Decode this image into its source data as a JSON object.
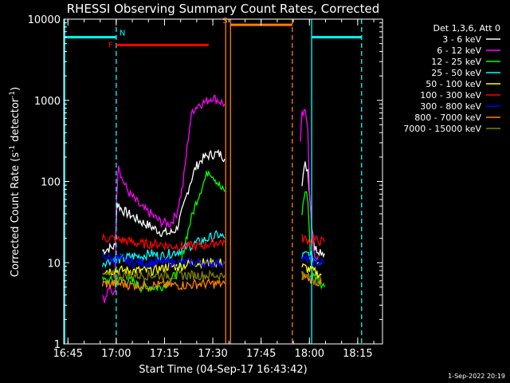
{
  "chart_data": {
    "type": "line",
    "title": "RHESSI Observing Summary Count Rates, Corrected",
    "xlabel": "Start Time (04-Sep-17 16:43:42)",
    "ylabel_main": "Corrected Count Rate (s",
    "ylabel_sup1": "-1",
    "ylabel_mid": " detector",
    "ylabel_sup2": "-1",
    "ylabel_end": ")",
    "y_scale": "log",
    "ylim": [
      1,
      10000
    ],
    "xlim_minutes": [
      0,
      99
    ],
    "x_ticks": [
      {
        "m": 1.3,
        "label": "16:45"
      },
      {
        "m": 16.3,
        "label": "17:00"
      },
      {
        "m": 31.3,
        "label": "17:15"
      },
      {
        "m": 46.3,
        "label": "17:30"
      },
      {
        "m": 61.3,
        "label": "17:45"
      },
      {
        "m": 76.3,
        "label": "18:00"
      },
      {
        "m": 91.3,
        "label": "18:15"
      }
    ],
    "y_ticks": [
      {
        "v": 1,
        "label": "1"
      },
      {
        "v": 10,
        "label": "10"
      },
      {
        "v": 100,
        "label": "100"
      },
      {
        "v": 1000,
        "label": "1000"
      },
      {
        "v": 10000,
        "label": "10000"
      }
    ],
    "legend_title": "Det 1,3,6, Att 0",
    "series": [
      {
        "name": "3 - 6 keV",
        "color": "#ffffff",
        "segments": [
          [
            [
              12,
              14
            ],
            [
              14,
              15
            ],
            [
              16,
              16
            ],
            [
              16.5,
              55
            ],
            [
              18,
              45
            ],
            [
              21,
              38
            ],
            [
              24,
              32
            ],
            [
              27,
              28
            ],
            [
              30,
              24
            ],
            [
              33,
              23
            ],
            [
              35,
              26
            ],
            [
              37,
              45
            ],
            [
              39,
              90
            ],
            [
              41,
              150
            ],
            [
              43,
              190
            ],
            [
              45,
              210
            ],
            [
              47,
              220
            ],
            [
              49,
              215
            ],
            [
              50,
              190
            ]
          ],
          [
            [
              74,
              100
            ],
            [
              75,
              160
            ],
            [
              75.8,
              140
            ],
            [
              76.5,
              60
            ],
            [
              77,
              30
            ],
            [
              78,
              15
            ],
            [
              80,
              14
            ],
            [
              81,
              13
            ]
          ]
        ]
      },
      {
        "name": "6 - 12 keV",
        "color": "#ff00ff",
        "segments": [
          [
            [
              12,
              4
            ],
            [
              13,
              3.5
            ],
            [
              14,
              5
            ],
            [
              15,
              4
            ],
            [
              16,
              5
            ],
            [
              16.3,
              60
            ],
            [
              17,
              170
            ],
            [
              18,
              110
            ],
            [
              20,
              75
            ],
            [
              22,
              60
            ],
            [
              24,
              48
            ],
            [
              27,
              40
            ],
            [
              30,
              32
            ],
            [
              33,
              30
            ],
            [
              35,
              40
            ],
            [
              37,
              90
            ],
            [
              38,
              200
            ],
            [
              39,
              450
            ],
            [
              40,
              750
            ],
            [
              42,
              900
            ],
            [
              44,
              950
            ],
            [
              46,
              1100
            ],
            [
              48,
              1000
            ],
            [
              50,
              900
            ]
          ],
          [
            [
              73.5,
              300
            ],
            [
              74,
              650
            ],
            [
              75,
              700
            ],
            [
              75.8,
              500
            ],
            [
              76.3,
              80
            ],
            [
              77,
              25
            ],
            [
              78,
              12
            ],
            [
              79,
              12
            ]
          ]
        ]
      },
      {
        "name": "12 - 25 keV",
        "color": "#00ff00",
        "segments": [
          [
            [
              12,
              6
            ],
            [
              15,
              6
            ],
            [
              18,
              6
            ],
            [
              21,
              6
            ],
            [
              24,
              5
            ],
            [
              27,
              5
            ],
            [
              30,
              5
            ],
            [
              33,
              6
            ],
            [
              36,
              8
            ],
            [
              38,
              20
            ],
            [
              40,
              40
            ],
            [
              42,
              70
            ],
            [
              44,
              110
            ],
            [
              45,
              140
            ],
            [
              47,
              110
            ],
            [
              49,
              80
            ],
            [
              50,
              75
            ]
          ],
          [
            [
              74,
              40
            ],
            [
              75,
              80
            ],
            [
              75.8,
              60
            ],
            [
              76.5,
              15
            ],
            [
              77,
              8
            ],
            [
              79,
              6
            ],
            [
              81,
              5
            ]
          ]
        ]
      },
      {
        "name": "25 - 50 keV",
        "color": "#00ffff",
        "segments": [
          [
            [
              12,
              10
            ],
            [
              15,
              11
            ],
            [
              18,
              11
            ],
            [
              21,
              12
            ],
            [
              24,
              12
            ],
            [
              27,
              13
            ],
            [
              30,
              12
            ],
            [
              33,
              13
            ],
            [
              36,
              14
            ],
            [
              39,
              16
            ],
            [
              42,
              18
            ],
            [
              45,
              20
            ],
            [
              48,
              22
            ],
            [
              50,
              20
            ]
          ],
          [
            [
              74,
              12
            ],
            [
              76,
              13
            ],
            [
              78,
              11
            ],
            [
              80,
              10
            ]
          ]
        ]
      },
      {
        "name": "50 - 100 keV",
        "color": "#ffff00",
        "segments": [
          [
            [
              12,
              8
            ],
            [
              16,
              8
            ],
            [
              20,
              8
            ],
            [
              24,
              8
            ],
            [
              28,
              8
            ],
            [
              32,
              9
            ],
            [
              36,
              9
            ],
            [
              40,
              10
            ],
            [
              44,
              10
            ],
            [
              48,
              10
            ],
            [
              50,
              10
            ]
          ],
          [
            [
              74,
              9
            ],
            [
              77,
              8
            ],
            [
              80,
              7
            ]
          ]
        ]
      },
      {
        "name": "100 - 300 keV",
        "color": "#ff0000",
        "segments": [
          [
            [
              12,
              20
            ],
            [
              15,
              20
            ],
            [
              18,
              19
            ],
            [
              21,
              18
            ],
            [
              24,
              17
            ],
            [
              27,
              17
            ],
            [
              30,
              17
            ],
            [
              33,
              16
            ],
            [
              36,
              16
            ],
            [
              39,
              16
            ],
            [
              42,
              16
            ],
            [
              45,
              17
            ],
            [
              48,
              18
            ],
            [
              50,
              18
            ]
          ],
          [
            [
              74,
              20
            ],
            [
              76,
              19
            ],
            [
              78,
              19
            ],
            [
              81,
              18
            ]
          ]
        ]
      },
      {
        "name": "300 - 800 keV",
        "color": "#0000ff",
        "segments": [
          [
            [
              12,
              12
            ],
            [
              15,
              11
            ],
            [
              18,
              11
            ],
            [
              21,
              10
            ],
            [
              24,
              10
            ],
            [
              27,
              10
            ],
            [
              30,
              10
            ],
            [
              33,
              10
            ],
            [
              36,
              10
            ],
            [
              39,
              10
            ],
            [
              42,
              10
            ],
            [
              45,
              10
            ],
            [
              48,
              10
            ],
            [
              50,
              10
            ]
          ],
          [
            [
              74,
              11
            ],
            [
              76,
              11
            ],
            [
              78,
              10
            ],
            [
              81,
              10
            ]
          ]
        ]
      },
      {
        "name": "800 - 7000 keV",
        "color": "#ff8000",
        "segments": [
          [
            [
              12,
              5.5
            ],
            [
              15,
              5.5
            ],
            [
              18,
              5.5
            ],
            [
              21,
              5.3
            ],
            [
              24,
              5.3
            ],
            [
              27,
              5.3
            ],
            [
              30,
              5.3
            ],
            [
              33,
              5.3
            ],
            [
              36,
              5.3
            ],
            [
              39,
              5.3
            ],
            [
              42,
              5.5
            ],
            [
              45,
              5.5
            ],
            [
              48,
              5.5
            ],
            [
              50,
              5.5
            ]
          ],
          [
            [
              74,
              7
            ],
            [
              76,
              6.5
            ],
            [
              78,
              6
            ],
            [
              80,
              5.5
            ]
          ]
        ]
      },
      {
        "name": "7000 - 15000 keV",
        "color": "#808000",
        "segments": [
          [
            [
              12,
              7
            ],
            [
              15,
              7
            ],
            [
              18,
              7
            ],
            [
              21,
              7
            ],
            [
              24,
              7
            ],
            [
              27,
              7
            ],
            [
              30,
              7
            ],
            [
              33,
              7
            ],
            [
              36,
              7
            ],
            [
              39,
              7
            ],
            [
              42,
              7
            ],
            [
              45,
              7
            ],
            [
              48,
              7
            ],
            [
              50,
              7
            ]
          ],
          [
            [
              74,
              7
            ],
            [
              77,
              6.5
            ],
            [
              80,
              6
            ]
          ]
        ]
      }
    ],
    "flags": [
      {
        "label": "N",
        "color": "#00ffff",
        "bars": [
          [
            0,
            16.3
          ],
          [
            77,
            92.5
          ]
        ],
        "level": 6000
      },
      {
        "label": "F",
        "color": "#ff0000",
        "bars": [
          [
            16.3,
            45
          ]
        ],
        "level": 4800
      },
      {
        "label": "S",
        "color": "#ff8000",
        "bars": [
          [
            51.8,
            71
          ]
        ],
        "level": 8500
      }
    ],
    "verticals": [
      {
        "m": 0.3,
        "color": "#00ffff",
        "style": "solid"
      },
      {
        "m": 16.3,
        "color": "#00ffff",
        "style": "dashed"
      },
      {
        "m": 77,
        "color": "#00ffff",
        "style": "solid"
      },
      {
        "m": 92.5,
        "color": "#00ffff",
        "style": "dashed"
      },
      {
        "m": 50.3,
        "color": "#ff8000",
        "style": "solid"
      },
      {
        "m": 51.8,
        "color": "#ff8000",
        "style": "solid"
      },
      {
        "m": 71,
        "color": "#ff8000",
        "style": "dashed"
      }
    ]
  },
  "footer_date": "1-Sep-2022 20:19"
}
